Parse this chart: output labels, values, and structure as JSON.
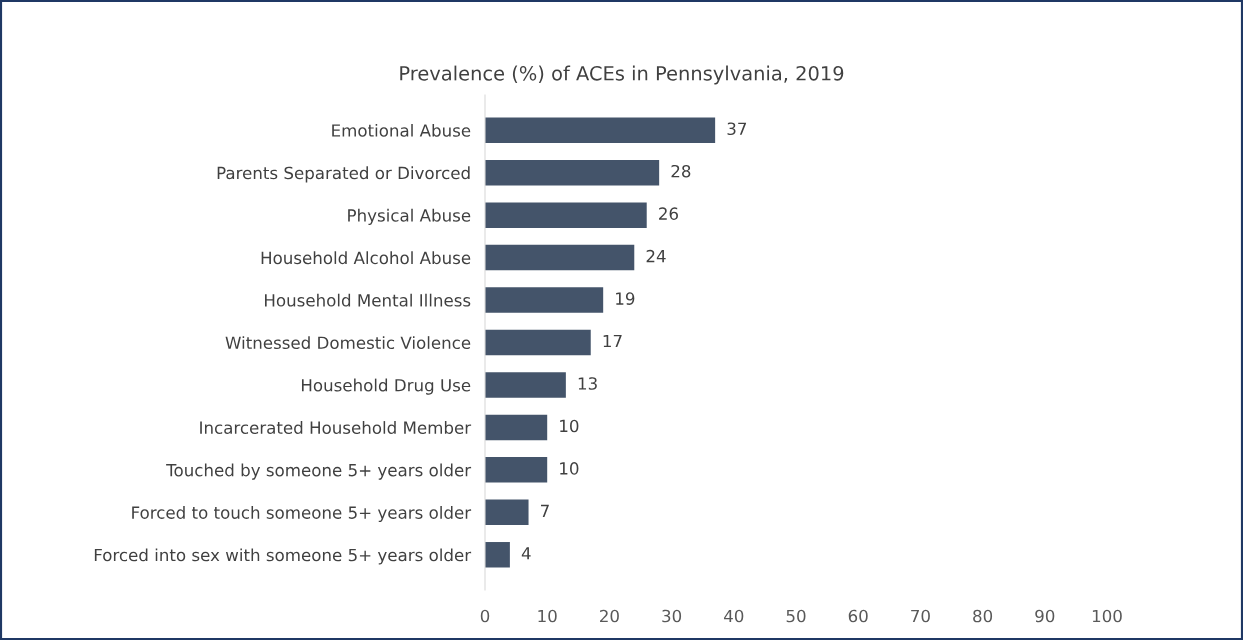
{
  "chart_data": {
    "type": "bar",
    "orientation": "horizontal",
    "title": "Prevalence (%) of ACEs in Pennsylvania, 2019",
    "categories": [
      "Emotional Abuse",
      "Parents Separated or Divorced",
      "Physical Abuse",
      "Household Alcohol Abuse",
      "Household Mental Illness",
      "Witnessed Domestic Violence",
      "Household Drug Use",
      "Incarcerated Household Member",
      "Touched by someone 5+ years older",
      "Forced to touch someone 5+ years older",
      "Forced into sex with someone 5+ years older"
    ],
    "values": [
      37,
      28,
      26,
      24,
      19,
      17,
      13,
      10,
      10,
      7,
      4
    ],
    "color": "#44546a",
    "data_labels": true,
    "xlim": [
      0,
      100
    ],
    "xticks": [
      0,
      10,
      20,
      30,
      40,
      50,
      60,
      70,
      80,
      90,
      100
    ],
    "grid": false,
    "legend": false
  }
}
